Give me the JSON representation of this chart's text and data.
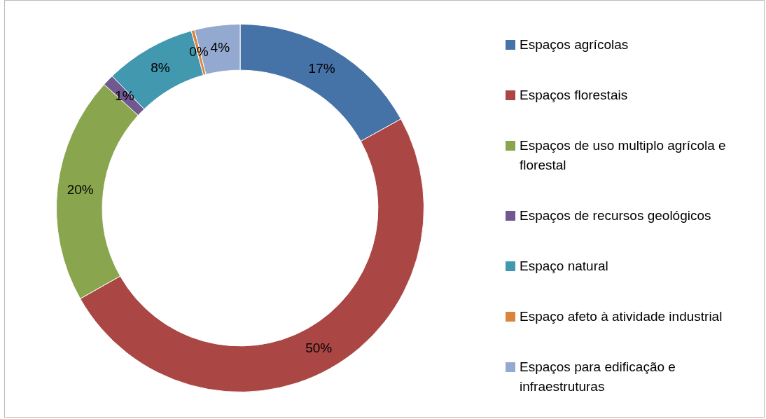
{
  "chart_data": {
    "type": "donut",
    "categories": [
      "Espaços agrícolas",
      "Espaços florestais",
      "Espaços de uso multiplo agrícola e florestal",
      "Espaços de recursos geológicos",
      "Espaço natural",
      "Espaço afeto à atividade industrial",
      "Espaços para edificação e infraestruturas"
    ],
    "values": [
      17,
      50,
      20,
      1,
      8,
      0.3,
      4
    ],
    "value_labels": [
      "17%",
      "50%",
      "20%",
      "1%",
      "8%",
      "0%",
      "4%"
    ],
    "colors": [
      "#4572a7",
      "#aa4643",
      "#89a54e",
      "#71588f",
      "#4198af",
      "#db843d",
      "#93a9cf"
    ],
    "legend": "right"
  }
}
